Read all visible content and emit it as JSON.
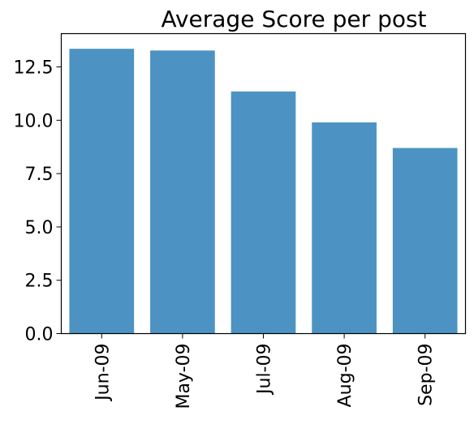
{
  "chart_data": {
    "type": "bar",
    "title": "Average Score per post",
    "xlabel": "",
    "ylabel": "",
    "categories": [
      "Jun-09",
      "May-09",
      "Jul-09",
      "Aug-09",
      "Sep-09"
    ],
    "values": [
      13.35,
      13.27,
      11.35,
      9.9,
      8.7
    ],
    "ylim": [
      0,
      14.06
    ],
    "yticks": [
      "0.0",
      "2.5",
      "5.0",
      "7.5",
      "10.0",
      "12.5"
    ],
    "bar_color": "#4c93c3",
    "grid": false,
    "legend": "none"
  }
}
